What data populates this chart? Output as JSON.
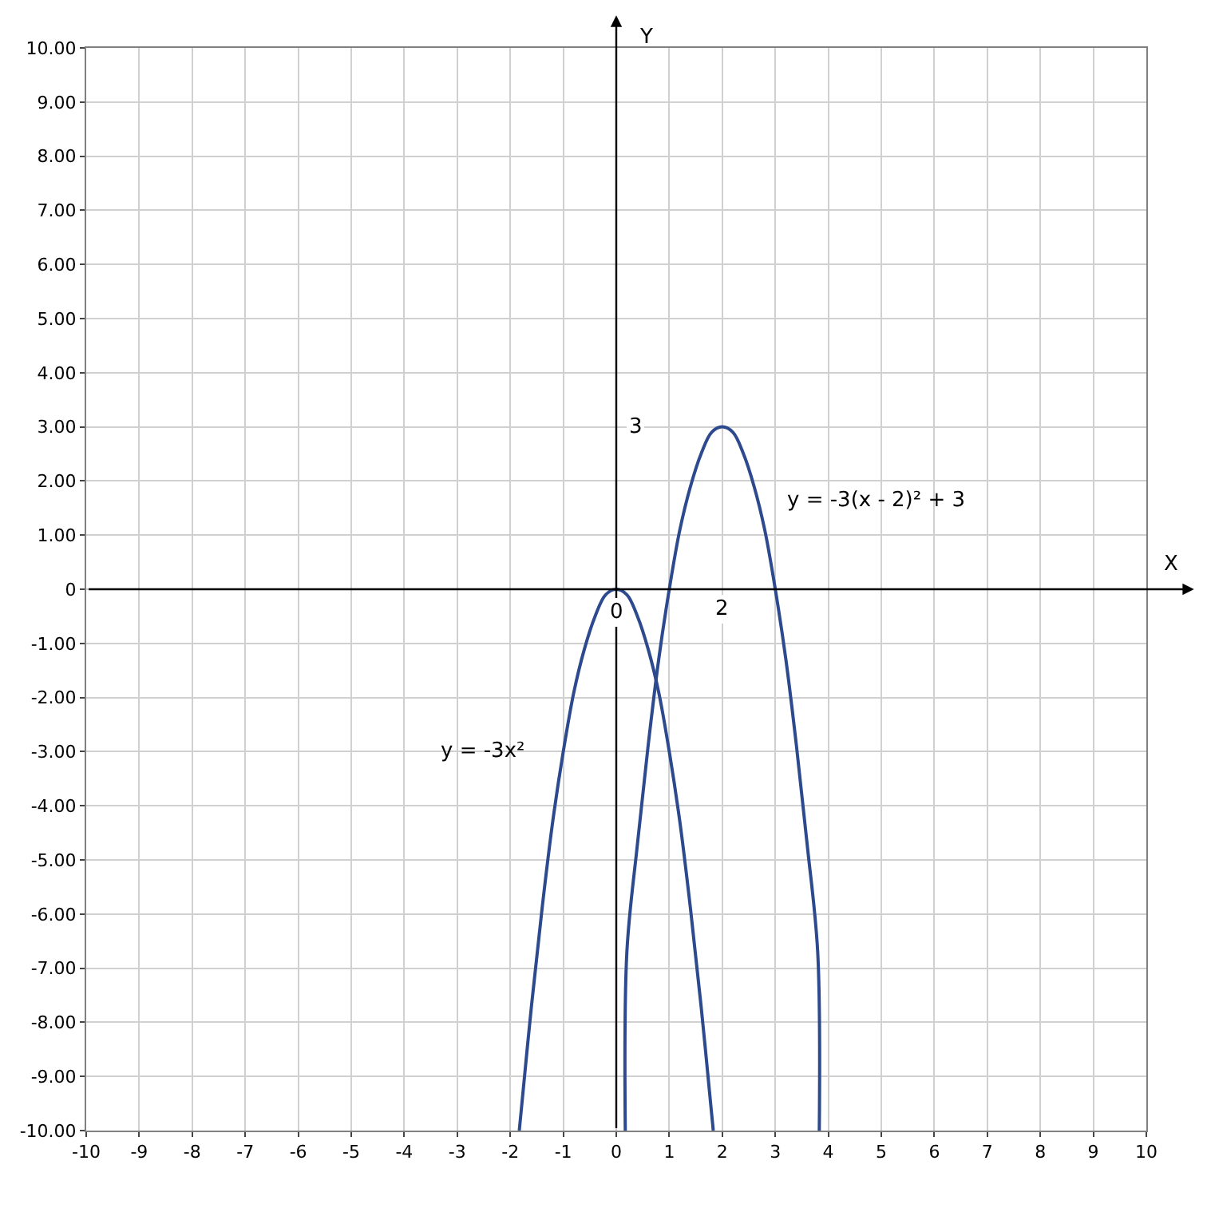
{
  "chart_data": {
    "type": "line",
    "xlabel": "X",
    "ylabel": "Y",
    "xlim": [
      -10,
      10
    ],
    "xticks": [
      -10,
      -9,
      -8,
      -7,
      -6,
      -5,
      -4,
      -3,
      -2,
      -1,
      0,
      1,
      2,
      3,
      4,
      5,
      6,
      7,
      8,
      9,
      10
    ],
    "ylim": [
      -10,
      10
    ],
    "yticks": [
      {
        "value": -10,
        "label": "-10.00"
      },
      {
        "value": -9,
        "label": "-9.00"
      },
      {
        "value": -8,
        "label": "-8.00"
      },
      {
        "value": -7,
        "label": "-7.00"
      },
      {
        "value": -6,
        "label": "-6.00"
      },
      {
        "value": -5,
        "label": "-5.00"
      },
      {
        "value": -4,
        "label": "-4.00"
      },
      {
        "value": -3,
        "label": "-3.00"
      },
      {
        "value": -2,
        "label": "-2.00"
      },
      {
        "value": -1,
        "label": "-1.00"
      },
      0,
      {
        "value": 1,
        "label": "1.00"
      },
      {
        "value": 2,
        "label": "2.00"
      },
      {
        "value": 3,
        "label": "3.00"
      },
      {
        "value": 4,
        "label": "4.00"
      },
      {
        "value": 5,
        "label": "5.00"
      },
      {
        "value": 6,
        "label": "6.00"
      },
      {
        "value": 7,
        "label": "7.00"
      },
      {
        "value": 8,
        "label": "8.00"
      },
      {
        "value": 9,
        "label": "9.00"
      },
      {
        "value": 10,
        "label": "10.00"
      }
    ],
    "grid": true,
    "legend": false,
    "marker": "none",
    "line_style": "solid",
    "series": [
      {
        "name": "y = -3x²",
        "color": "#2e4a8e",
        "x": [
          -1.83,
          -1.8,
          -1.6,
          -1.4,
          -1.2,
          -1,
          -0.8,
          -0.6,
          -0.4,
          -0.2,
          0,
          0.2,
          0.4,
          0.6,
          0.8,
          1,
          1.2,
          1.4,
          1.6,
          1.8,
          1.83
        ],
        "values": [
          -10,
          -9.7,
          -7.7,
          -5.9,
          -4.3,
          -3,
          -1.9,
          -1.1,
          -0.5,
          -0.1,
          0,
          -0.1,
          -0.5,
          -1.1,
          -1.9,
          -3,
          -4.3,
          -5.9,
          -7.7,
          -9.7,
          -10
        ]
      },
      {
        "name": "y = -3(x - 2)² + 3",
        "color": "#2e4a8e",
        "x": [
          0.17,
          0.2,
          0.4,
          0.6,
          0.8,
          1,
          1.2,
          1.4,
          1.6,
          1.8,
          2,
          2.2,
          2.4,
          2.6,
          2.8,
          3,
          3.2,
          3.4,
          3.6,
          3.8,
          3.83
        ],
        "values": [
          -10,
          -6.7,
          -4.7,
          -2.9,
          -1.3,
          0,
          1.1,
          1.9,
          2.5,
          2.9,
          3,
          2.9,
          2.5,
          1.9,
          1.1,
          0,
          -1.3,
          -2.9,
          -4.7,
          -6.7,
          -10
        ]
      }
    ],
    "annotations": [
      "3",
      "0",
      "2"
    ]
  }
}
